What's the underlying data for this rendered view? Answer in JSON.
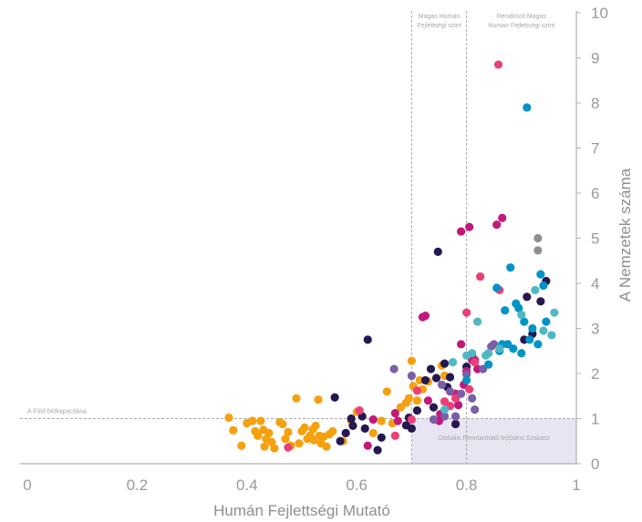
{
  "colors": {
    "axis": "#b0b0b0",
    "tick_text": "#9a9a9a",
    "dashed_line": "#a8a8a8",
    "quadrant_fill": "#e8e4f2",
    "quadrant_text": "#a8a8a8"
  },
  "chart_data": {
    "type": "scatter",
    "title": "",
    "xlabel": "Humán Fejlettségi Mutató",
    "ylabel": "A Nemzetek száma",
    "xlim": [
      0,
      1
    ],
    "ylim": [
      0,
      10
    ],
    "x_ticks": [
      "0",
      "0.2",
      "0.4",
      "0.6",
      "0.8",
      "1"
    ],
    "y_ticks": [
      "0",
      "1",
      "2",
      "3",
      "4",
      "5",
      "6",
      "7",
      "8",
      "9",
      "10"
    ],
    "y_axis_position": "right",
    "grid": false,
    "legend": null,
    "reference_lines": {
      "x_high": 0.7,
      "x_very_high": 0.8,
      "y_biocapacity": 1
    },
    "annotations": {
      "high_hdi": [
        "Magas Humán",
        "Fejlettségi szint"
      ],
      "very_high_hdi": [
        "Rendkívül Magas",
        "Human Fejlettségi szint"
      ],
      "biocapacity": "A Föld biokapacitása",
      "sustainable_quadrant": "Globális Fenntartható fejlődési Szakasz"
    },
    "series": [
      {
        "color": "#f5a00e",
        "points": [
          [
            0.367,
            1.02
          ],
          [
            0.375,
            0.74
          ],
          [
            0.39,
            0.4
          ],
          [
            0.4,
            0.9
          ],
          [
            0.41,
            0.95
          ],
          [
            0.415,
            0.72
          ],
          [
            0.42,
            0.62
          ],
          [
            0.425,
            0.95
          ],
          [
            0.43,
            0.75
          ],
          [
            0.432,
            0.38
          ],
          [
            0.435,
            0.55
          ],
          [
            0.44,
            0.68
          ],
          [
            0.445,
            0.48
          ],
          [
            0.45,
            0.34
          ],
          [
            0.46,
            0.92
          ],
          [
            0.465,
            0.88
          ],
          [
            0.47,
            0.55
          ],
          [
            0.475,
            0.7
          ],
          [
            0.48,
            0.4
          ],
          [
            0.49,
            1.45
          ],
          [
            0.495,
            0.45
          ],
          [
            0.5,
            0.72
          ],
          [
            0.505,
            0.8
          ],
          [
            0.51,
            0.55
          ],
          [
            0.515,
            0.62
          ],
          [
            0.52,
            0.76
          ],
          [
            0.522,
            0.52
          ],
          [
            0.525,
            0.84
          ],
          [
            0.53,
            1.42
          ],
          [
            0.532,
            0.62
          ],
          [
            0.535,
            0.45
          ],
          [
            0.54,
            0.6
          ],
          [
            0.545,
            0.38
          ],
          [
            0.55,
            0.65
          ],
          [
            0.556,
            0.72
          ],
          [
            0.575,
            0.5
          ],
          [
            0.59,
            0.95
          ],
          [
            0.6,
            1.15
          ],
          [
            0.63,
            0.68
          ],
          [
            0.645,
            0.95
          ],
          [
            0.655,
            1.6
          ],
          [
            0.665,
            0.9
          ],
          [
            0.68,
            1.25
          ],
          [
            0.69,
            1.35
          ],
          [
            0.695,
            1.45
          ],
          [
            0.7,
            2.28
          ],
          [
            0.703,
            1.72
          ],
          [
            0.71,
            1.4
          ],
          [
            0.715,
            1.85
          ],
          [
            0.72,
            1.65
          ],
          [
            0.73,
            1.82
          ],
          [
            0.755,
            2.18
          ],
          [
            0.76,
            1.95
          ]
        ]
      },
      {
        "color": "#25184f",
        "points": [
          [
            0.56,
            1.47
          ],
          [
            0.57,
            0.5
          ],
          [
            0.58,
            0.68
          ],
          [
            0.59,
            1.0
          ],
          [
            0.593,
            0.84
          ],
          [
            0.61,
            1.05
          ],
          [
            0.615,
            0.78
          ],
          [
            0.62,
            2.75
          ],
          [
            0.638,
            0.3
          ],
          [
            0.645,
            0.58
          ],
          [
            0.69,
            0.85
          ],
          [
            0.695,
            1.02
          ],
          [
            0.7,
            0.78
          ],
          [
            0.71,
            1.18
          ],
          [
            0.725,
            1.85
          ],
          [
            0.735,
            2.1
          ],
          [
            0.74,
            1.25
          ],
          [
            0.745,
            1.9
          ],
          [
            0.748,
            4.7
          ],
          [
            0.76,
            2.22
          ],
          [
            0.765,
            1.7
          ],
          [
            0.77,
            1.92
          ],
          [
            0.78,
            0.88
          ],
          [
            0.8,
            2.15
          ],
          [
            0.81,
            2.4
          ],
          [
            0.905,
            2.75
          ],
          [
            0.91,
            3.7
          ],
          [
            0.92,
            2.88
          ],
          [
            0.935,
            3.6
          ],
          [
            0.945,
            4.05
          ]
        ]
      },
      {
        "color": "#c2197a",
        "points": [
          [
            0.62,
            0.4
          ],
          [
            0.63,
            0.98
          ],
          [
            0.67,
            1.12
          ],
          [
            0.675,
            0.95
          ],
          [
            0.72,
            3.25
          ],
          [
            0.725,
            3.28
          ],
          [
            0.73,
            1.4
          ],
          [
            0.75,
            0.95
          ],
          [
            0.752,
            1.1
          ],
          [
            0.78,
            1.55
          ],
          [
            0.785,
            1.3
          ],
          [
            0.79,
            2.65
          ],
          [
            0.795,
            1.75
          ],
          [
            0.8,
            2.05
          ],
          [
            0.805,
            5.25
          ],
          [
            0.81,
            2.3
          ],
          [
            0.815,
            2.3
          ],
          [
            0.82,
            2.1
          ],
          [
            0.79,
            5.15
          ],
          [
            0.855,
            5.3
          ],
          [
            0.865,
            5.45
          ]
        ]
      },
      {
        "color": "#ea3f77",
        "points": [
          [
            0.475,
            0.36
          ],
          [
            0.605,
            1.18
          ],
          [
            0.67,
            0.62
          ],
          [
            0.7,
            0.98
          ],
          [
            0.71,
            1.62
          ],
          [
            0.76,
            1.38
          ],
          [
            0.77,
            1.28
          ],
          [
            0.78,
            1.45
          ],
          [
            0.8,
            3.35
          ],
          [
            0.805,
            1.65
          ],
          [
            0.815,
            2.25
          ],
          [
            0.825,
            4.15
          ],
          [
            0.858,
            8.85
          ],
          [
            0.86,
            3.85
          ]
        ]
      },
      {
        "color": "#7b5ea7",
        "points": [
          [
            0.668,
            2.1
          ],
          [
            0.7,
            1.95
          ],
          [
            0.74,
            0.98
          ],
          [
            0.755,
            1.75
          ],
          [
            0.76,
            1.05
          ],
          [
            0.77,
            1.6
          ],
          [
            0.78,
            1.05
          ],
          [
            0.79,
            1.55
          ],
          [
            0.8,
            1.98
          ],
          [
            0.81,
            1.45
          ],
          [
            0.815,
            1.2
          ],
          [
            0.83,
            2.1
          ],
          [
            0.845,
            2.6
          ],
          [
            0.85,
            2.65
          ]
        ]
      },
      {
        "color": "#0093c6",
        "points": [
          [
            0.8,
            1.85
          ],
          [
            0.84,
            2.2
          ],
          [
            0.855,
            3.9
          ],
          [
            0.86,
            2.5
          ],
          [
            0.865,
            2.65
          ],
          [
            0.87,
            3.4
          ],
          [
            0.875,
            2.65
          ],
          [
            0.88,
            4.35
          ],
          [
            0.885,
            2.55
          ],
          [
            0.89,
            3.55
          ],
          [
            0.895,
            3.45
          ],
          [
            0.9,
            2.45
          ],
          [
            0.905,
            3.15
          ],
          [
            0.91,
            7.9
          ],
          [
            0.915,
            2.75
          ],
          [
            0.92,
            3.0
          ],
          [
            0.93,
            2.65
          ],
          [
            0.935,
            4.2
          ],
          [
            0.94,
            3.95
          ],
          [
            0.945,
            3.15
          ]
        ]
      },
      {
        "color": "#4fb8c5",
        "points": [
          [
            0.76,
            1.2
          ],
          [
            0.775,
            2.25
          ],
          [
            0.8,
            2.4
          ],
          [
            0.81,
            2.45
          ],
          [
            0.82,
            3.15
          ],
          [
            0.835,
            2.4
          ],
          [
            0.84,
            2.45
          ],
          [
            0.86,
            2.55
          ],
          [
            0.9,
            3.3
          ],
          [
            0.925,
            3.85
          ],
          [
            0.94,
            2.95
          ],
          [
            0.955,
            2.85
          ],
          [
            0.96,
            3.35
          ]
        ]
      },
      {
        "color": "#909090",
        "points": [
          [
            0.93,
            5.0
          ],
          [
            0.93,
            4.73
          ]
        ]
      }
    ]
  }
}
